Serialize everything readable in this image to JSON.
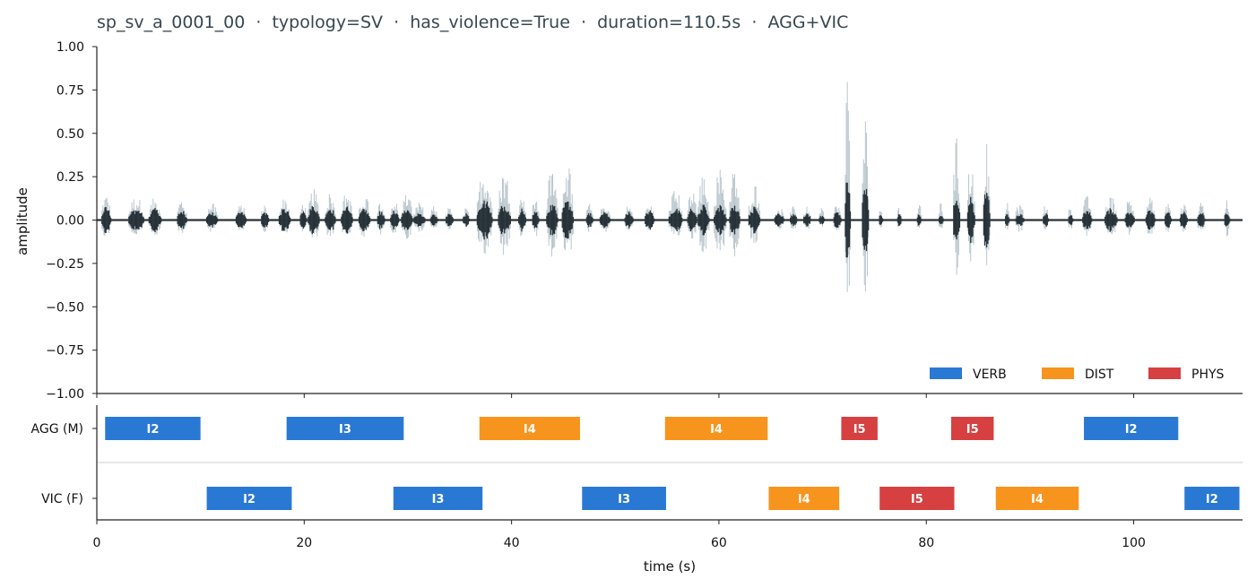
{
  "chart_data": {
    "type": "waveform_timeline",
    "title": "sp_sv_a_0001_00  ·  typology=SV  ·  has_violence=True  ·  duration=110.5s  ·  AGG+VIC",
    "xlabel": "time (s)",
    "ylabel": "amplitude",
    "xlim": [
      0,
      110.5
    ],
    "ylim": [
      -1.0,
      1.0
    ],
    "x_ticks": [
      0,
      20,
      40,
      60,
      80,
      100
    ],
    "y_ticks": [
      1.0,
      0.75,
      0.5,
      0.25,
      0.0,
      -0.25,
      -0.5,
      -0.75,
      -1.0
    ],
    "y_tick_labels": [
      "1.00",
      "0.75",
      "0.50",
      "0.25",
      "0.00",
      "−0.25",
      "−0.50",
      "−0.75",
      "−1.00"
    ],
    "colors": {
      "wave_envelope": "#b9c6cc",
      "wave_core": "#263238",
      "VERB": "#2979d4",
      "DIST": "#f7941d",
      "PHYS": "#d64040",
      "title": "#37474f"
    },
    "legend": {
      "placement": "lower-right",
      "entries": [
        {
          "label": "VERB",
          "color": "#2979d4"
        },
        {
          "label": "DIST",
          "color": "#f7941d"
        },
        {
          "label": "PHYS",
          "color": "#d64040"
        }
      ]
    },
    "waveform_bursts": [
      [
        0.9,
        1.0,
        0.08,
        0.15
      ],
      [
        3.8,
        1.6,
        0.07,
        0.14
      ],
      [
        5.6,
        1.3,
        0.07,
        0.13
      ],
      [
        8.2,
        1.0,
        0.06,
        0.13
      ],
      [
        11.1,
        1.2,
        0.05,
        0.1
      ],
      [
        13.9,
        1.1,
        0.05,
        0.09
      ],
      [
        16.2,
        0.8,
        0.05,
        0.1
      ],
      [
        18.1,
        1.2,
        0.07,
        0.13
      ],
      [
        19.9,
        0.7,
        0.05,
        0.11
      ],
      [
        20.9,
        1.2,
        0.09,
        0.18
      ],
      [
        22.5,
        1.1,
        0.08,
        0.16
      ],
      [
        24.1,
        1.2,
        0.08,
        0.16
      ],
      [
        25.8,
        1.2,
        0.07,
        0.15
      ],
      [
        27.4,
        0.8,
        0.06,
        0.12
      ],
      [
        28.7,
        0.9,
        0.06,
        0.12
      ],
      [
        29.9,
        1.2,
        0.07,
        0.16
      ],
      [
        31.1,
        1.2,
        0.04,
        0.1
      ],
      [
        32.5,
        0.8,
        0.04,
        0.08
      ],
      [
        34.0,
        0.8,
        0.04,
        0.08
      ],
      [
        35.6,
        0.7,
        0.04,
        0.08
      ],
      [
        37.4,
        1.6,
        0.12,
        0.3
      ],
      [
        39.3,
        1.3,
        0.1,
        0.3
      ],
      [
        41.0,
        0.8,
        0.07,
        0.15
      ],
      [
        42.3,
        0.7,
        0.06,
        0.15
      ],
      [
        43.9,
        1.2,
        0.1,
        0.3
      ],
      [
        45.4,
        1.2,
        0.12,
        0.34
      ],
      [
        47.5,
        0.7,
        0.05,
        0.1
      ],
      [
        49.0,
        1.1,
        0.05,
        0.1
      ],
      [
        51.3,
        0.9,
        0.05,
        0.09
      ],
      [
        53.3,
        1.0,
        0.06,
        0.09
      ],
      [
        55.8,
        1.4,
        0.07,
        0.18
      ],
      [
        57.4,
        1.0,
        0.07,
        0.18
      ],
      [
        58.5,
        1.2,
        0.09,
        0.27
      ],
      [
        60.1,
        1.3,
        0.09,
        0.3
      ],
      [
        61.5,
        1.1,
        0.09,
        0.3
      ],
      [
        63.4,
        1.2,
        0.08,
        0.22
      ],
      [
        65.8,
        1.0,
        0.04,
        0.08
      ],
      [
        67.2,
        0.8,
        0.04,
        0.08
      ],
      [
        68.5,
        0.8,
        0.04,
        0.08
      ],
      [
        69.9,
        0.6,
        0.03,
        0.07
      ],
      [
        71.4,
        0.8,
        0.05,
        0.1
      ],
      [
        72.4,
        0.6,
        0.25,
        0.8
      ],
      [
        74.1,
        0.7,
        0.22,
        0.65
      ],
      [
        75.6,
        0.4,
        0.04,
        0.08
      ],
      [
        77.4,
        0.5,
        0.04,
        0.09
      ],
      [
        79.3,
        0.5,
        0.04,
        0.1
      ],
      [
        81.4,
        0.5,
        0.04,
        0.1
      ],
      [
        82.9,
        0.7,
        0.18,
        0.48
      ],
      [
        84.3,
        0.8,
        0.14,
        0.36
      ],
      [
        85.8,
        0.7,
        0.18,
        0.45
      ],
      [
        87.8,
        0.5,
        0.04,
        0.1
      ],
      [
        89.0,
        0.9,
        0.04,
        0.1
      ],
      [
        91.5,
        0.6,
        0.05,
        0.09
      ],
      [
        93.9,
        0.5,
        0.04,
        0.09
      ],
      [
        95.5,
        1.0,
        0.06,
        0.14
      ],
      [
        97.8,
        1.3,
        0.07,
        0.14
      ],
      [
        99.6,
        1.0,
        0.06,
        0.13
      ],
      [
        101.6,
        1.0,
        0.06,
        0.13
      ],
      [
        103.3,
        0.7,
        0.05,
        0.11
      ],
      [
        104.8,
        0.8,
        0.05,
        0.1
      ],
      [
        106.5,
        0.8,
        0.05,
        0.12
      ],
      [
        109.0,
        0.6,
        0.05,
        0.13
      ]
    ],
    "tracks": [
      {
        "name": "AGG (M)",
        "segments": [
          {
            "start": 0.8,
            "end": 10.0,
            "label": "I2",
            "category": "VERB"
          },
          {
            "start": 18.3,
            "end": 29.6,
            "label": "I3",
            "category": "VERB"
          },
          {
            "start": 36.9,
            "end": 46.6,
            "label": "I4",
            "category": "DIST"
          },
          {
            "start": 54.8,
            "end": 64.7,
            "label": "I4",
            "category": "DIST"
          },
          {
            "start": 71.8,
            "end": 75.3,
            "label": "I5",
            "category": "PHYS"
          },
          {
            "start": 82.4,
            "end": 86.5,
            "label": "I5",
            "category": "PHYS"
          },
          {
            "start": 95.2,
            "end": 104.3,
            "label": "I2",
            "category": "VERB"
          }
        ]
      },
      {
        "name": "VIC (F)",
        "segments": [
          {
            "start": 10.6,
            "end": 18.8,
            "label": "I2",
            "category": "VERB"
          },
          {
            "start": 28.6,
            "end": 37.2,
            "label": "I3",
            "category": "VERB"
          },
          {
            "start": 46.8,
            "end": 54.9,
            "label": "I3",
            "category": "VERB"
          },
          {
            "start": 64.8,
            "end": 71.6,
            "label": "I4",
            "category": "DIST"
          },
          {
            "start": 75.5,
            "end": 82.7,
            "label": "I5",
            "category": "PHYS"
          },
          {
            "start": 86.7,
            "end": 94.7,
            "label": "I4",
            "category": "DIST"
          },
          {
            "start": 104.9,
            "end": 110.2,
            "label": "I2",
            "category": "VERB"
          }
        ]
      }
    ]
  }
}
